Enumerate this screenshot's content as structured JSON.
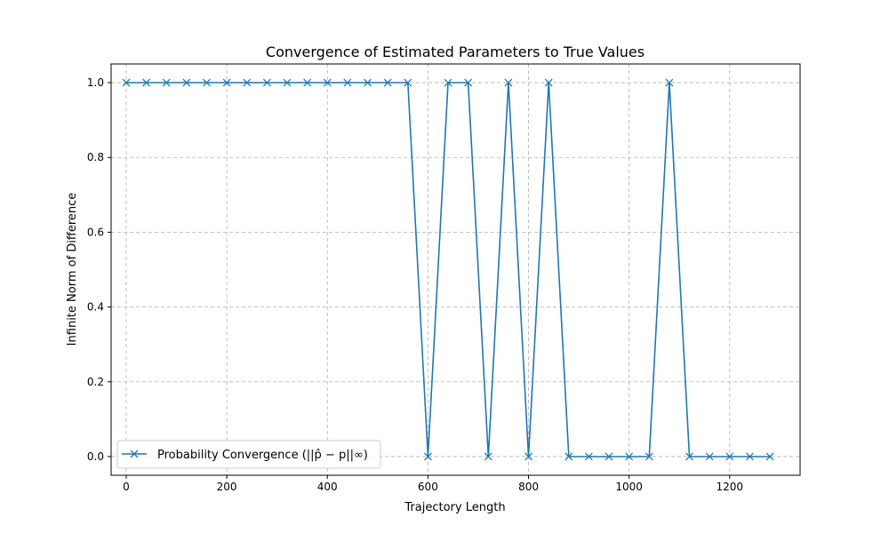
{
  "chart_data": {
    "type": "line",
    "title": "Convergence of Estimated Parameters to True Values",
    "xlabel": "Trajectory Length",
    "ylabel": "Infinite Norm of Difference",
    "xlim": [
      -30,
      1340
    ],
    "ylim": [
      -0.05,
      1.05
    ],
    "xticks": [
      0,
      200,
      400,
      600,
      800,
      1000,
      1200
    ],
    "yticks": [
      0.0,
      0.2,
      0.4,
      0.6,
      0.8,
      1.0
    ],
    "xtick_labels": [
      "0",
      "200",
      "400",
      "600",
      "800",
      "1000",
      "1200"
    ],
    "ytick_labels": [
      "0.0",
      "0.2",
      "0.4",
      "0.6",
      "0.8",
      "1.0"
    ],
    "grid": true,
    "legend_position": "lower-left",
    "legend_label": "Probability Convergence (||p̂ − p||∞)",
    "series": [
      {
        "name": "Probability Convergence (||p̂ − p||∞)",
        "color": "#1f77b4",
        "marker": "x",
        "x": [
          0,
          40,
          80,
          120,
          160,
          200,
          240,
          280,
          320,
          360,
          400,
          440,
          480,
          520,
          560,
          600,
          640,
          680,
          720,
          760,
          800,
          840,
          880,
          920,
          960,
          1000,
          1040,
          1080,
          1120,
          1160,
          1200,
          1240,
          1280
        ],
        "y": [
          1,
          1,
          1,
          1,
          1,
          1,
          1,
          1,
          1,
          1,
          1,
          1,
          1,
          1,
          1,
          0,
          1,
          1,
          0,
          1,
          0,
          1,
          0,
          0,
          0,
          0,
          0,
          1,
          0,
          0,
          0,
          0,
          0
        ]
      }
    ]
  }
}
